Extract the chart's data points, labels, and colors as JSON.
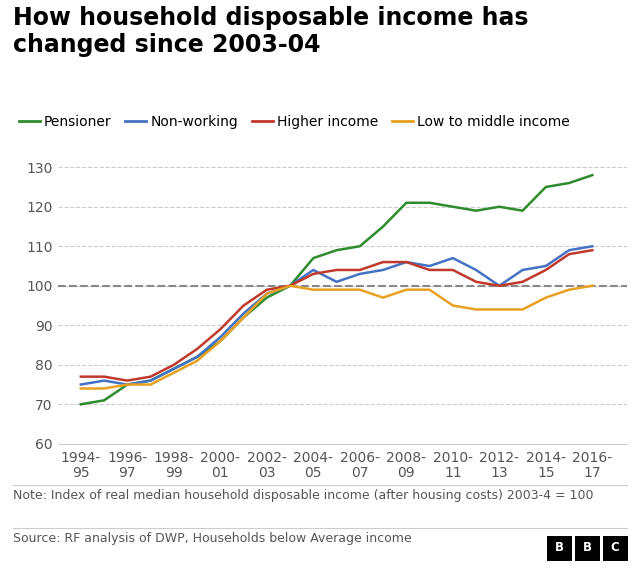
{
  "title": "How household disposable income has\nchanged since 2003-04",
  "note": "Note: Index of real median household disposable income (after housing costs) 2003-4 = 100",
  "source": "Source: RF analysis of DWP, Households below Average income",
  "x_labels": [
    "1994-\n95",
    "1996-\n97",
    "1998-\n99",
    "2000-\n01",
    "2002-\n03",
    "2004-\n05",
    "2006-\n07",
    "2008-\n09",
    "2010-\n11",
    "2012-\n13",
    "2014-\n15",
    "2016-\n17"
  ],
  "x_values": [
    1994,
    1996,
    1998,
    2000,
    2002,
    2004,
    2006,
    2008,
    2010,
    2012,
    2014,
    2016
  ],
  "series": {
    "Pensioner": {
      "color": "#2e8b2e",
      "data_x": [
        1994,
        1995,
        1996,
        1997,
        1998,
        1999,
        2000,
        2001,
        2002,
        2003,
        2004,
        2005,
        2006,
        2007,
        2008,
        2009,
        2010,
        2011,
        2012,
        2013,
        2014,
        2015,
        2016
      ],
      "data_y": [
        70,
        71,
        75,
        76,
        79,
        82,
        86,
        92,
        97,
        100,
        107,
        109,
        110,
        115,
        121,
        121,
        120,
        119,
        120,
        119,
        125,
        126,
        128
      ]
    },
    "Non-working": {
      "color": "#4472c4",
      "data_x": [
        1994,
        1995,
        1996,
        1997,
        1998,
        1999,
        2000,
        2001,
        2002,
        2003,
        2004,
        2005,
        2006,
        2007,
        2008,
        2009,
        2010,
        2011,
        2012,
        2013,
        2014,
        2015,
        2016
      ],
      "data_y": [
        75,
        76,
        75,
        76,
        79,
        82,
        87,
        93,
        98,
        100,
        104,
        101,
        103,
        104,
        106,
        105,
        107,
        104,
        100,
        104,
        105,
        109,
        110
      ]
    },
    "Higher income": {
      "color": "#c0392b",
      "data_x": [
        1994,
        1995,
        1996,
        1997,
        1998,
        1999,
        2000,
        2001,
        2002,
        2003,
        2004,
        2005,
        2006,
        2007,
        2008,
        2009,
        2010,
        2011,
        2012,
        2013,
        2014,
        2015,
        2016
      ],
      "data_y": [
        77,
        77,
        76,
        77,
        80,
        84,
        89,
        95,
        99,
        100,
        103,
        104,
        104,
        106,
        106,
        104,
        104,
        101,
        100,
        101,
        104,
        108,
        109
      ]
    },
    "Low to middle income": {
      "color": "#e8a020",
      "data_x": [
        1994,
        1995,
        1996,
        1997,
        1998,
        1999,
        2000,
        2001,
        2002,
        2003,
        2004,
        2005,
        2006,
        2007,
        2008,
        2009,
        2010,
        2011,
        2012,
        2013,
        2014,
        2015,
        2016
      ],
      "data_y": [
        74,
        74,
        75,
        75,
        78,
        81,
        86,
        92,
        98,
        100,
        99,
        99,
        99,
        97,
        99,
        99,
        95,
        94,
        94,
        94,
        97,
        99,
        100
      ]
    }
  },
  "ylim": [
    60,
    132
  ],
  "yticks": [
    60,
    70,
    80,
    90,
    100,
    110,
    120,
    130
  ],
  "background_color": "#ffffff",
  "grid_color": "#cccccc",
  "reference_line_y": 100,
  "title_fontsize": 17,
  "legend_fontsize": 10,
  "tick_fontsize": 10,
  "note_fontsize": 9,
  "source_fontsize": 9
}
